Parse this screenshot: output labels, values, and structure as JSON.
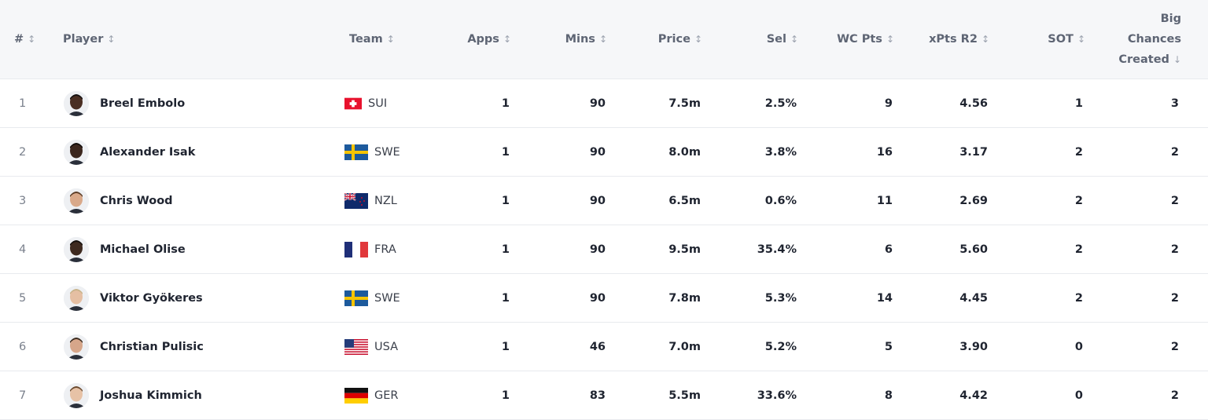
{
  "columns": {
    "rank": "#",
    "player": "Player",
    "team": "Team",
    "apps": "Apps",
    "mins": "Mins",
    "price": "Price",
    "sel": "Sel",
    "wc_pts": "WC Pts",
    "xpts": "xPts R2",
    "sot": "SOT",
    "bcc_line1": "Big",
    "bcc_line2": "Chances",
    "bcc_line3": "Created"
  },
  "sort_icons": {
    "unsorted": "↕",
    "sorted_desc": "↓"
  },
  "rows": [
    {
      "rank": "1",
      "player": "Breel Embolo",
      "avatar": "embolo-avatar",
      "flag": "switzerland-flag",
      "team": "SUI",
      "apps": "1",
      "mins": "90",
      "price": "7.5m",
      "sel": "2.5%",
      "wc_pts": "9",
      "xpts": "4.56",
      "sot": "1",
      "bcc": "3"
    },
    {
      "rank": "2",
      "player": "Alexander Isak",
      "avatar": "isak-avatar",
      "flag": "sweden-flag",
      "team": "SWE",
      "apps": "1",
      "mins": "90",
      "price": "8.0m",
      "sel": "3.8%",
      "wc_pts": "16",
      "xpts": "3.17",
      "sot": "2",
      "bcc": "2"
    },
    {
      "rank": "3",
      "player": "Chris Wood",
      "avatar": "wood-avatar",
      "flag": "new-zealand-flag",
      "team": "NZL",
      "apps": "1",
      "mins": "90",
      "price": "6.5m",
      "sel": "0.6%",
      "wc_pts": "11",
      "xpts": "2.69",
      "sot": "2",
      "bcc": "2"
    },
    {
      "rank": "4",
      "player": "Michael Olise",
      "avatar": "olise-avatar",
      "flag": "france-flag",
      "team": "FRA",
      "apps": "1",
      "mins": "90",
      "price": "9.5m",
      "sel": "35.4%",
      "wc_pts": "6",
      "xpts": "5.60",
      "sot": "2",
      "bcc": "2"
    },
    {
      "rank": "5",
      "player": "Viktor Gyökeres",
      "avatar": "gyokeres-avatar",
      "flag": "sweden-flag",
      "team": "SWE",
      "apps": "1",
      "mins": "90",
      "price": "7.8m",
      "sel": "5.3%",
      "wc_pts": "14",
      "xpts": "4.45",
      "sot": "2",
      "bcc": "2"
    },
    {
      "rank": "6",
      "player": "Christian Pulisic",
      "avatar": "pulisic-avatar",
      "flag": "usa-flag",
      "team": "USA",
      "apps": "1",
      "mins": "46",
      "price": "7.0m",
      "sel": "5.2%",
      "wc_pts": "5",
      "xpts": "3.90",
      "sot": "0",
      "bcc": "2"
    },
    {
      "rank": "7",
      "player": "Joshua Kimmich",
      "avatar": "kimmich-avatar",
      "flag": "germany-flag",
      "team": "GER",
      "apps": "1",
      "mins": "83",
      "price": "5.5m",
      "sel": "33.6%",
      "wc_pts": "8",
      "xpts": "4.42",
      "sot": "0",
      "bcc": "2"
    }
  ]
}
